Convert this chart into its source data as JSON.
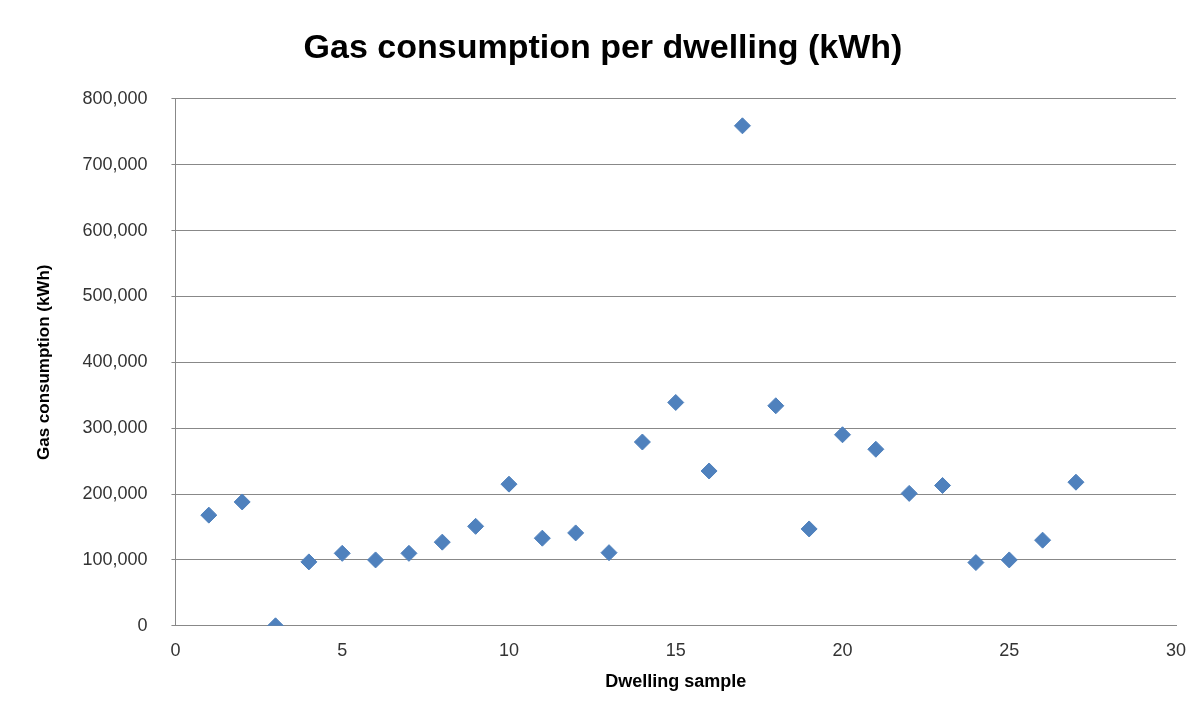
{
  "chart_data": {
    "type": "scatter",
    "title": "Gas consumption per dwelling (kWh)",
    "xlabel": "Dwelling sample",
    "ylabel": "Gas consumption (kWh)",
    "x": [
      1,
      2,
      3,
      4,
      5,
      6,
      7,
      8,
      9,
      10,
      11,
      12,
      13,
      14,
      15,
      16,
      17,
      18,
      19,
      20,
      21,
      22,
      23,
      24,
      25,
      26,
      27
    ],
    "series": [
      {
        "color": "#4f81bd",
        "values": [
          168000,
          188000,
          0,
          97000,
          110000,
          100000,
          110000,
          127000,
          151000,
          215000,
          133000,
          141000,
          111000,
          279000,
          339000,
          235000,
          759000,
          334000,
          147000,
          290000,
          268000,
          201000,
          213000,
          96000,
          100000,
          130000,
          218000
        ]
      }
    ],
    "xlim": [
      0,
      30
    ],
    "xticks": [
      0,
      5,
      10,
      15,
      20,
      25,
      30
    ],
    "ylim": [
      0,
      800000
    ],
    "yticks": [
      {
        "value": 0,
        "label": "0"
      },
      {
        "value": 100000,
        "label": "100,000"
      },
      {
        "value": 200000,
        "label": "200,000"
      },
      {
        "value": 300000,
        "label": "300,000"
      },
      {
        "value": 400000,
        "label": "400,000"
      },
      {
        "value": 500000,
        "label": "500,000"
      },
      {
        "value": 600000,
        "label": "600,000"
      },
      {
        "value": 700000,
        "label": "700,000"
      },
      {
        "value": 800000,
        "label": "800,000"
      }
    ],
    "grid": "y",
    "legend": false,
    "marker": "diamond"
  }
}
